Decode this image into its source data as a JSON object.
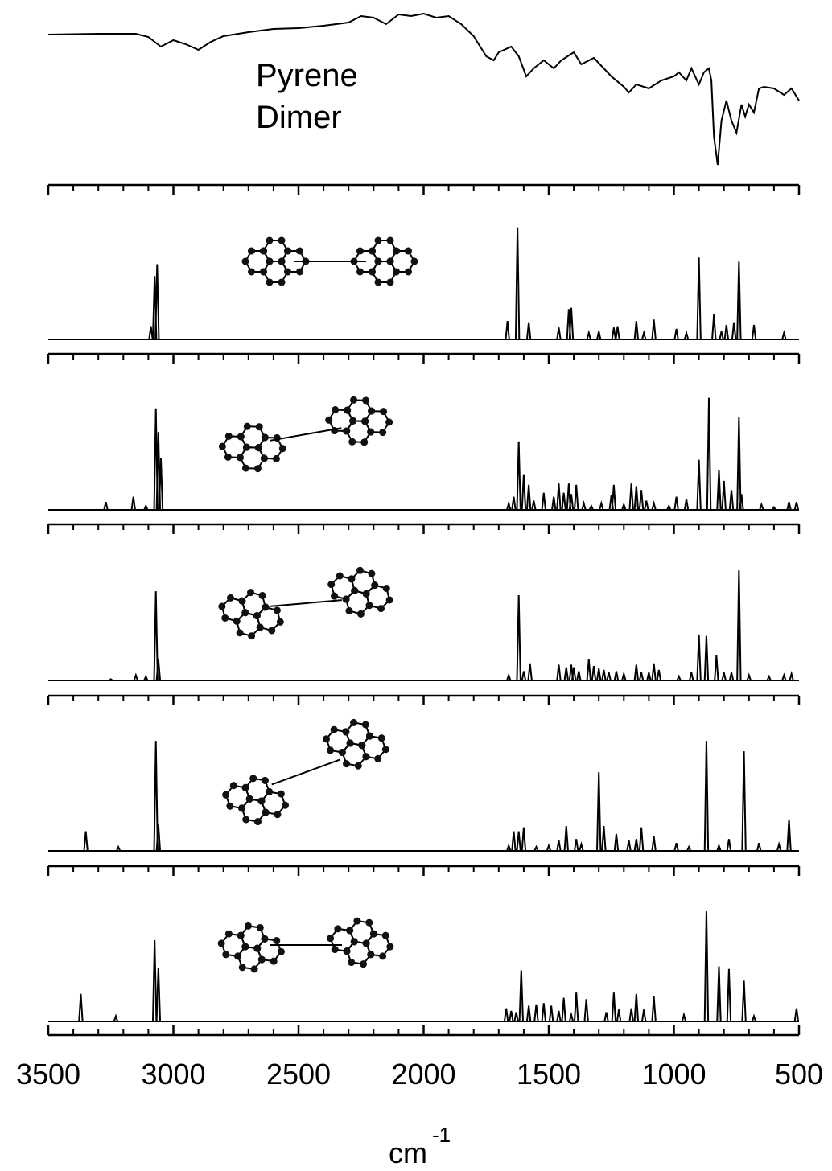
{
  "axis": {
    "xlim": [
      3500,
      500
    ],
    "xticks": [
      3500,
      3000,
      2500,
      2000,
      1500,
      1000,
      500
    ],
    "xminorticks": [
      3400,
      3300,
      3200,
      3100,
      2900,
      2800,
      2700,
      2600,
      2400,
      2300,
      2200,
      2100,
      1900,
      1800,
      1700,
      1600,
      1400,
      1300,
      1200,
      1100,
      900,
      800,
      700,
      600
    ],
    "label": "cm",
    "label_exponent": "-1"
  },
  "chart_data": [
    {
      "type": "line",
      "annotation": [
        "Pyrene",
        "Dimer"
      ],
      "ylim": [
        0,
        195
      ],
      "x": [
        3500,
        3300,
        3150,
        3100,
        3050,
        3000,
        2950,
        2900,
        2850,
        2800,
        2700,
        2600,
        2500,
        2400,
        2300,
        2250,
        2200,
        2150,
        2100,
        2050,
        2000,
        1950,
        1900,
        1850,
        1800,
        1750,
        1720,
        1700,
        1650,
        1620,
        1590,
        1560,
        1520,
        1480,
        1450,
        1400,
        1370,
        1320,
        1280,
        1250,
        1200,
        1180,
        1150,
        1100,
        1050,
        1000,
        980,
        950,
        930,
        900,
        880,
        860,
        850,
        840,
        825,
        810,
        790,
        770,
        750,
        730,
        715,
        700,
        680,
        660,
        640,
        600,
        560,
        530,
        500
      ],
      "values": [
        167,
        168,
        168,
        164,
        152,
        160,
        155,
        148,
        158,
        165,
        170,
        174,
        175,
        178,
        182,
        190,
        188,
        180,
        192,
        190,
        193,
        188,
        190,
        180,
        165,
        140,
        135,
        145,
        152,
        140,
        115,
        125,
        135,
        125,
        135,
        145,
        130,
        138,
        125,
        115,
        102,
        95,
        105,
        100,
        110,
        115,
        120,
        110,
        125,
        105,
        120,
        125,
        110,
        40,
        5,
        60,
        85,
        60,
        45,
        80,
        65,
        80,
        70,
        100,
        102,
        100,
        92,
        100,
        85
      ]
    },
    {
      "type": "spectrum",
      "ylim": [
        0,
        100
      ],
      "x": [
        3090,
        3075,
        3065,
        1665,
        1625,
        1580,
        1460,
        1420,
        1410,
        1340,
        1300,
        1240,
        1225,
        1150,
        1120,
        1080,
        990,
        950,
        900,
        840,
        810,
        790,
        760,
        740,
        680,
        560
      ],
      "values": [
        10,
        48,
        57,
        14,
        85,
        13,
        9,
        23,
        24,
        5,
        6,
        9,
        10,
        14,
        5,
        15,
        8,
        5,
        62,
        19,
        6,
        11,
        13,
        59,
        11,
        5
      ]
    },
    {
      "type": "spectrum",
      "ylim": [
        0,
        100
      ],
      "x": [
        3270,
        3160,
        3110,
        3070,
        3060,
        3050,
        1660,
        1640,
        1620,
        1600,
        1580,
        1560,
        1520,
        1480,
        1460,
        1440,
        1420,
        1410,
        1390,
        1360,
        1330,
        1290,
        1250,
        1240,
        1200,
        1170,
        1150,
        1130,
        1110,
        1080,
        1020,
        990,
        950,
        900,
        860,
        820,
        800,
        770,
        740,
        730,
        650,
        600,
        540,
        510
      ],
      "values": [
        6,
        10,
        3,
        77,
        59,
        39,
        5,
        10,
        52,
        27,
        19,
        7,
        13,
        10,
        20,
        13,
        20,
        12,
        19,
        5,
        3,
        5,
        11,
        19,
        4,
        20,
        18,
        15,
        7,
        5,
        3,
        10,
        8,
        38,
        85,
        30,
        22,
        15,
        70,
        12,
        4,
        2,
        6,
        6
      ]
    },
    {
      "type": "spectrum",
      "ylim": [
        0,
        100
      ],
      "x": [
        3250,
        3150,
        3110,
        3070,
        3060,
        1660,
        1620,
        1600,
        1575,
        1460,
        1430,
        1410,
        1400,
        1380,
        1340,
        1320,
        1300,
        1280,
        1260,
        1230,
        1200,
        1150,
        1130,
        1100,
        1080,
        1060,
        980,
        930,
        900,
        870,
        830,
        800,
        770,
        740,
        700,
        620,
        560,
        530
      ],
      "values": [
        1,
        4,
        3,
        68,
        16,
        4,
        65,
        7,
        13,
        12,
        10,
        12,
        10,
        7,
        16,
        11,
        9,
        8,
        6,
        7,
        5,
        12,
        6,
        6,
        13,
        8,
        3,
        6,
        35,
        34,
        19,
        6,
        6,
        84,
        4,
        3,
        4,
        5
      ]
    },
    {
      "type": "spectrum",
      "ylim": [
        0,
        100
      ],
      "x": [
        3350,
        3220,
        3070,
        3060,
        1660,
        1640,
        1620,
        1600,
        1550,
        1500,
        1460,
        1430,
        1390,
        1370,
        1300,
        1280,
        1230,
        1180,
        1150,
        1130,
        1080,
        990,
        940,
        870,
        820,
        780,
        720,
        660,
        580,
        540
      ],
      "values": [
        15,
        3,
        84,
        20,
        4,
        15,
        15,
        18,
        3,
        4,
        8,
        19,
        9,
        5,
        60,
        19,
        13,
        8,
        9,
        18,
        11,
        6,
        3,
        84,
        4,
        9,
        76,
        6,
        5,
        24
      ]
    },
    {
      "type": "spectrum",
      "ylim": [
        0,
        100
      ],
      "x": [
        3370,
        3230,
        3075,
        3060,
        1670,
        1650,
        1630,
        1610,
        1580,
        1550,
        1520,
        1490,
        1460,
        1440,
        1410,
        1390,
        1350,
        1270,
        1240,
        1220,
        1170,
        1150,
        1120,
        1080,
        960,
        870,
        820,
        780,
        720,
        680,
        510
      ],
      "values": [
        21,
        4,
        62,
        41,
        10,
        8,
        7,
        39,
        12,
        13,
        14,
        12,
        8,
        18,
        5,
        22,
        17,
        7,
        22,
        9,
        10,
        21,
        9,
        19,
        5,
        84,
        42,
        40,
        31,
        4,
        10
      ]
    }
  ]
}
